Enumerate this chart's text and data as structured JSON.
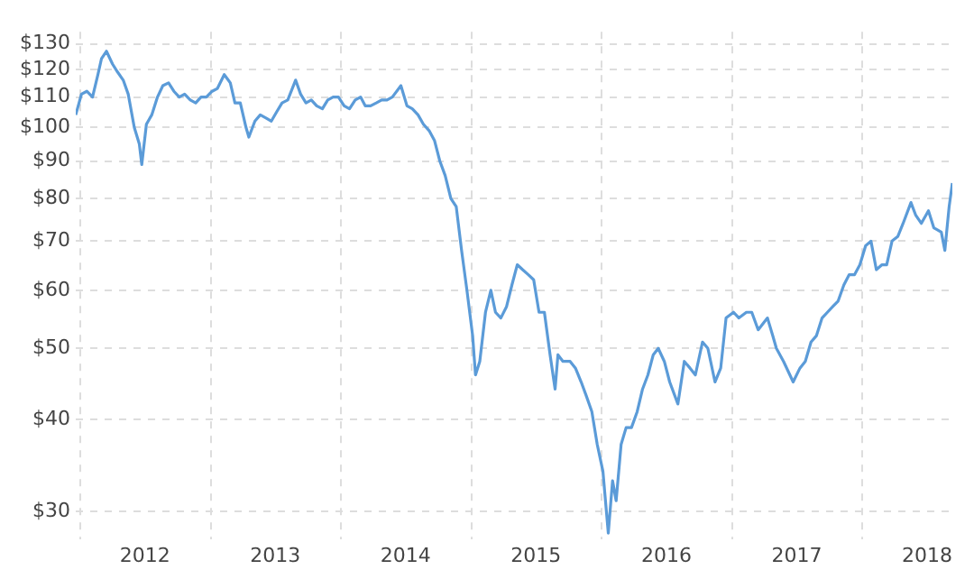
{
  "chart_data": {
    "type": "line",
    "log": "y",
    "grid": true,
    "line_style": "solid",
    "marker": "none",
    "x": [
      "2011-12-20",
      "2012-01-05",
      "2012-01-20",
      "2012-02-05",
      "2012-02-20",
      "2012-03-01",
      "2012-03-15",
      "2012-04-01",
      "2012-04-15",
      "2012-05-01",
      "2012-05-15",
      "2012-06-01",
      "2012-06-15",
      "2012-06-22",
      "2012-07-05",
      "2012-07-20",
      "2012-08-05",
      "2012-08-20",
      "2012-09-05",
      "2012-09-20",
      "2012-10-05",
      "2012-10-20",
      "2012-11-05",
      "2012-11-20",
      "2012-12-05",
      "2012-12-20",
      "2013-01-05",
      "2013-01-20",
      "2013-02-08",
      "2013-02-25",
      "2013-03-10",
      "2013-03-25",
      "2013-04-10",
      "2013-04-18",
      "2013-05-05",
      "2013-05-20",
      "2013-06-05",
      "2013-06-20",
      "2013-07-05",
      "2013-07-20",
      "2013-08-05",
      "2013-08-27",
      "2013-09-10",
      "2013-09-25",
      "2013-10-10",
      "2013-10-25",
      "2013-11-10",
      "2013-11-25",
      "2013-12-10",
      "2013-12-25",
      "2014-01-10",
      "2014-01-25",
      "2014-02-10",
      "2014-02-25",
      "2014-03-10",
      "2014-03-25",
      "2014-04-10",
      "2014-04-25",
      "2014-05-10",
      "2014-05-25",
      "2014-06-18",
      "2014-07-05",
      "2014-07-20",
      "2014-08-05",
      "2014-08-20",
      "2014-09-05",
      "2014-09-20",
      "2014-10-05",
      "2014-10-20",
      "2014-11-05",
      "2014-11-20",
      "2014-12-05",
      "2014-12-20",
      "2015-01-05",
      "2015-01-13",
      "2015-01-25",
      "2015-02-10",
      "2015-02-25",
      "2015-03-10",
      "2015-03-25",
      "2015-04-10",
      "2015-04-25",
      "2015-05-10",
      "2015-05-25",
      "2015-06-10",
      "2015-06-25",
      "2015-07-10",
      "2015-07-25",
      "2015-08-10",
      "2015-08-24",
      "2015-09-01",
      "2015-09-15",
      "2015-10-05",
      "2015-10-20",
      "2015-11-05",
      "2015-11-20",
      "2015-12-05",
      "2015-12-20",
      "2016-01-05",
      "2016-01-20",
      "2016-02-01",
      "2016-02-11",
      "2016-02-25",
      "2016-03-10",
      "2016-03-25",
      "2016-04-10",
      "2016-04-25",
      "2016-05-10",
      "2016-05-25",
      "2016-06-08",
      "2016-06-25",
      "2016-07-10",
      "2016-08-02",
      "2016-08-20",
      "2016-09-05",
      "2016-09-20",
      "2016-10-10",
      "2016-10-25",
      "2016-11-14",
      "2016-11-30",
      "2016-12-15",
      "2017-01-05",
      "2017-01-20",
      "2017-02-10",
      "2017-02-25",
      "2017-03-15",
      "2017-04-10",
      "2017-04-25",
      "2017-05-05",
      "2017-05-25",
      "2017-06-21",
      "2017-07-10",
      "2017-07-25",
      "2017-08-10",
      "2017-08-25",
      "2017-09-10",
      "2017-09-25",
      "2017-10-10",
      "2017-10-25",
      "2017-11-10",
      "2017-11-25",
      "2017-12-10",
      "2017-12-25",
      "2018-01-10",
      "2018-01-25",
      "2018-02-09",
      "2018-02-25",
      "2018-03-10",
      "2018-03-25",
      "2018-04-10",
      "2018-04-25",
      "2018-05-17",
      "2018-05-30",
      "2018-06-15",
      "2018-07-05",
      "2018-07-20",
      "2018-08-10",
      "2018-08-20",
      "2018-09-01",
      "2018-09-10"
    ],
    "series": [
      {
        "color": "#5b9bd8",
        "values": [
          104,
          111,
          112,
          110,
          118,
          124,
          127,
          122,
          119,
          116,
          111,
          100,
          95,
          89,
          101,
          104,
          110,
          114,
          115,
          112,
          110,
          111,
          109,
          108,
          110,
          110,
          112,
          113,
          118,
          115,
          108,
          108,
          100,
          97,
          102,
          104,
          103,
          102,
          105,
          108,
          109,
          116,
          111,
          108,
          109,
          107,
          106,
          109,
          110,
          110,
          107,
          106,
          109,
          110,
          107,
          107,
          108,
          109,
          109,
          110,
          114,
          107,
          106,
          104,
          101,
          99,
          96,
          90,
          86,
          80,
          78,
          68,
          60,
          52,
          46,
          48,
          56,
          60,
          56,
          55,
          57,
          61,
          65,
          64,
          63,
          62,
          56,
          56,
          49,
          44,
          49,
          48,
          48,
          47,
          45,
          43,
          41,
          37,
          34,
          28,
          33,
          31,
          37,
          39,
          39,
          41,
          44,
          46,
          49,
          50,
          48,
          45,
          42,
          48,
          47,
          46,
          51,
          50,
          45,
          47,
          55,
          56,
          55,
          56,
          56,
          53,
          55,
          52,
          50,
          48,
          45,
          47,
          48,
          51,
          52,
          55,
          56,
          57,
          58,
          61,
          63,
          63,
          65,
          69,
          70,
          64,
          65,
          65,
          70,
          71,
          74,
          79,
          76,
          74,
          77,
          73,
          72,
          68,
          78,
          84
        ]
      }
    ],
    "ylim": [
      27.5,
      135
    ],
    "yticks": [
      {
        "value": 30,
        "label": "$30"
      },
      {
        "value": 40,
        "label": "$40"
      },
      {
        "value": 50,
        "label": "$50"
      },
      {
        "value": 60,
        "label": "$60"
      },
      {
        "value": 70,
        "label": "$70"
      },
      {
        "value": 80,
        "label": "$80"
      },
      {
        "value": 90,
        "label": "$90"
      },
      {
        "value": 100,
        "label": "$100"
      },
      {
        "value": 110,
        "label": "$110"
      },
      {
        "value": 120,
        "label": "$120"
      },
      {
        "value": 130,
        "label": "$130"
      }
    ],
    "xlim": [
      "2011-12-20",
      "2018-09-10"
    ],
    "xticks": [
      {
        "value": "2012-01-01",
        "label": null
      },
      {
        "value": "2012-07-01",
        "label": "2012"
      },
      {
        "value": "2013-01-01",
        "label": null
      },
      {
        "value": "2013-07-01",
        "label": "2013"
      },
      {
        "value": "2014-01-01",
        "label": null
      },
      {
        "value": "2014-07-01",
        "label": "2014"
      },
      {
        "value": "2015-01-01",
        "label": null
      },
      {
        "value": "2015-07-01",
        "label": "2015"
      },
      {
        "value": "2016-01-01",
        "label": null
      },
      {
        "value": "2016-07-01",
        "label": "2016"
      },
      {
        "value": "2017-01-01",
        "label": null
      },
      {
        "value": "2017-07-01",
        "label": "2017"
      },
      {
        "value": "2018-01-01",
        "label": null
      },
      {
        "value": "2018-07-01",
        "label": "2018"
      }
    ]
  }
}
